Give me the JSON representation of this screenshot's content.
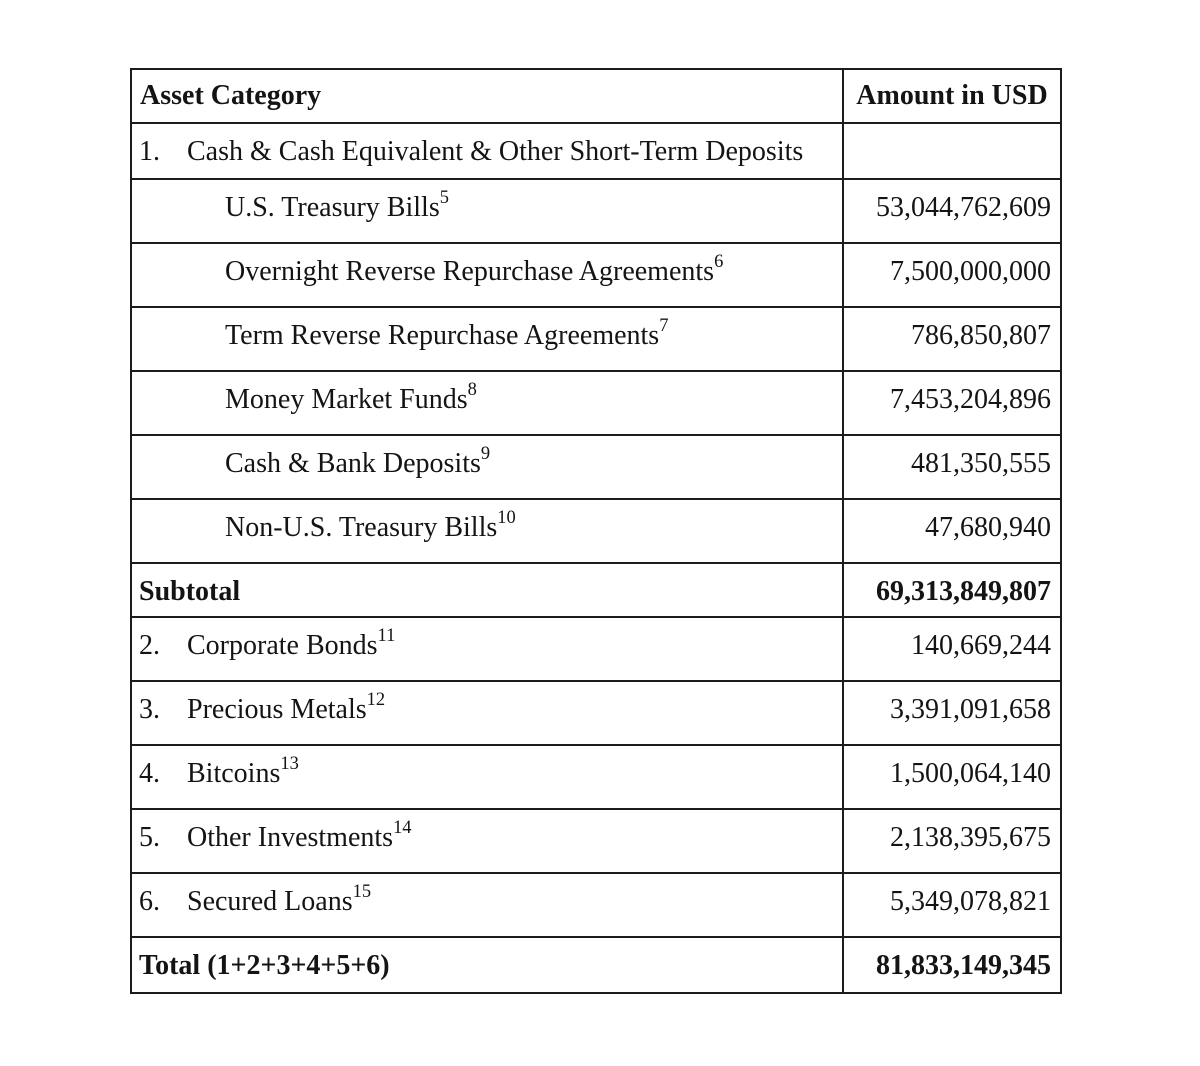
{
  "table": {
    "headers": {
      "category": "Asset Category",
      "amount": "Amount in USD"
    },
    "rows": [
      {
        "type": "item",
        "number": "1.",
        "label": "Cash & Cash Equivalent & Other Short-Term Deposits",
        "footnote": "",
        "amount": ""
      },
      {
        "type": "sub",
        "number": "",
        "label": "U.S. Treasury Bills",
        "footnote": "5",
        "amount": "53,044,762,609"
      },
      {
        "type": "sub",
        "number": "",
        "label": "Overnight Reverse Repurchase Agreements",
        "footnote": "6",
        "amount": "7,500,000,000"
      },
      {
        "type": "sub",
        "number": "",
        "label": "Term Reverse Repurchase Agreements",
        "footnote": "7",
        "amount": "786,850,807"
      },
      {
        "type": "sub",
        "number": "",
        "label": "Money Market Funds",
        "footnote": "8",
        "amount": "7,453,204,896"
      },
      {
        "type": "sub",
        "number": "",
        "label": "Cash & Bank Deposits",
        "footnote": "9",
        "amount": "481,350,555"
      },
      {
        "type": "sub",
        "number": "",
        "label": "Non-U.S. Treasury Bills",
        "footnote": "10",
        "amount": "47,680,940"
      },
      {
        "type": "bold",
        "number": "",
        "label": "Subtotal",
        "footnote": "",
        "amount": "69,313,849,807"
      },
      {
        "type": "item",
        "number": "2.",
        "label": "Corporate Bonds",
        "footnote": "11",
        "amount": "140,669,244"
      },
      {
        "type": "item",
        "number": "3.",
        "label": "Precious Metals",
        "footnote": "12",
        "amount": "3,391,091,658"
      },
      {
        "type": "item",
        "number": "4.",
        "label": "Bitcoins",
        "footnote": "13",
        "amount": "1,500,064,140"
      },
      {
        "type": "item",
        "number": "5.",
        "label": "Other Investments",
        "footnote": "14",
        "amount": "2,138,395,675"
      },
      {
        "type": "item",
        "number": "6.",
        "label": "Secured Loans",
        "footnote": "15",
        "amount": "5,349,078,821"
      },
      {
        "type": "bold",
        "number": "",
        "label": "Total (1+2+3+4+5+6)",
        "footnote": "",
        "amount": "81,833,149,345"
      }
    ],
    "colors": {
      "border": "#1c1c1c",
      "text": "#141414",
      "background": "#ffffff"
    }
  }
}
